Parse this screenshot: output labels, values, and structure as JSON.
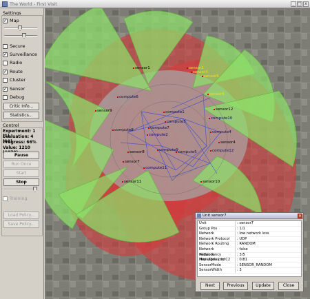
{
  "window": {
    "title": "The World - First Visit",
    "buttons": [
      "_",
      "□",
      "x"
    ]
  },
  "settings": {
    "title": "Settings",
    "checkboxes": [
      {
        "label": "Map",
        "checked": true
      },
      {
        "label": "Secure",
        "checked": false
      },
      {
        "label": "Surveillance",
        "checked": true
      },
      {
        "label": "Radio",
        "checked": false
      },
      {
        "label": "Route",
        "checked": true
      },
      {
        "label": "Cluster",
        "checked": false
      },
      {
        "label": "Sensor",
        "checked": true
      },
      {
        "label": "Debug",
        "checked": false
      }
    ],
    "critic_label": "Critic Info...",
    "statistics_label": "Statistics..."
  },
  "control": {
    "title": "Control",
    "experiment": "Experiment: 1 (1)",
    "evaluation": "Evaluation: 4 (10)",
    "progress": "Progress: 66%",
    "value": "Value: 1210 (1070)",
    "pause_label": "Pause",
    "run_once_label": "Run Once",
    "start_label": "Start",
    "stop_label": "Stop",
    "training_label": "Training",
    "load_label": "Load Policy...",
    "save_label": "Save Policy..."
  },
  "map": {
    "labels": [
      {
        "text": "sensor1",
        "color": "k"
      },
      {
        "text": "sensor2",
        "color": "y"
      },
      {
        "text": "sensor3",
        "color": "y"
      },
      {
        "text": "sensor4",
        "color": "k"
      },
      {
        "text": "sensor5",
        "color": "y"
      },
      {
        "text": "sensor6",
        "color": "y"
      },
      {
        "text": "sensor7",
        "color": "k"
      },
      {
        "text": "sensor8",
        "color": "k"
      },
      {
        "text": "sensor9",
        "color": "k"
      },
      {
        "text": "sensor10",
        "color": "k"
      },
      {
        "text": "sensor11",
        "color": "k"
      },
      {
        "text": "sensor12",
        "color": "k"
      },
      {
        "text": "compute1",
        "color": "w"
      },
      {
        "text": "compute2",
        "color": "w"
      },
      {
        "text": "compute3",
        "color": "w"
      },
      {
        "text": "compute4",
        "color": "w"
      },
      {
        "text": "compute5",
        "color": "w"
      },
      {
        "text": "compute6",
        "color": "w"
      },
      {
        "text": "compute7",
        "color": "w"
      },
      {
        "text": "compute8",
        "color": "w"
      },
      {
        "text": "compute9",
        "color": "w"
      },
      {
        "text": "compute10",
        "color": "w"
      },
      {
        "text": "compute11",
        "color": "w"
      },
      {
        "text": "compute12",
        "color": "w"
      }
    ]
  },
  "dialog": {
    "title": "Unit sensor7",
    "rows": [
      {
        "k": "Unit",
        "v": ": sensor7"
      },
      {
        "k": "Group Pos",
        "v": ": 1/1"
      },
      {
        "k": "Network",
        "v": ": low network loss"
      },
      {
        "k": "Network Protocol",
        "v": ": UDP"
      },
      {
        "k": "Network Routing",
        "v": ": RANDOM"
      },
      {
        "k": "Network Redundancy",
        "v": ": false"
      },
      {
        "k": "Network Hops/Delay to C2",
        "v": ": 3/5"
      },
      {
        "k": "Messages Lost",
        "v": ": 0/81"
      },
      {
        "k": "SensorMode",
        "v": ": SENSOR_RANDOM"
      },
      {
        "k": "SensorWidth",
        "v": ": 3"
      }
    ],
    "next_label": "Next",
    "previous_label": "Previous",
    "update_label": "Update",
    "close_label": "Close"
  }
}
